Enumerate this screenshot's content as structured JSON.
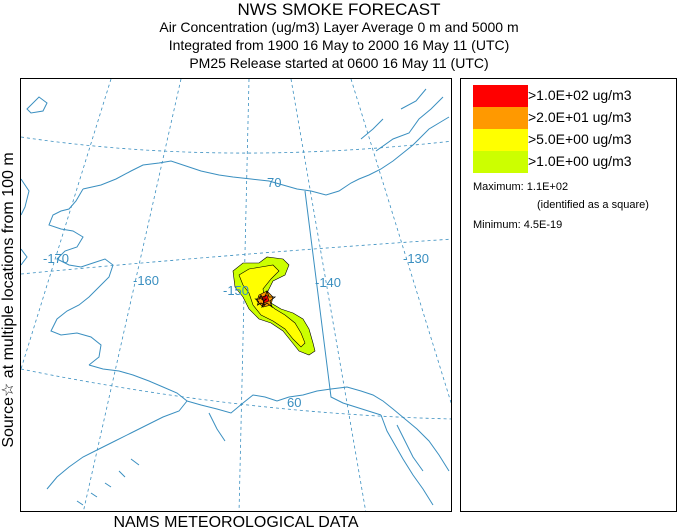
{
  "header": {
    "title": "NWS SMOKE FORECAST",
    "line2": "Air Concentration (ug/m3) Layer Average    0 m and  5000 m",
    "line3": "Integrated from 1900 16 May to 2000 16 May 11 (UTC)",
    "line4": "PM25 Release started at 0600 16 May 11 (UTC)"
  },
  "side_label": "Source☆  at multiple locations   from   100 m",
  "footer": "NAMS METEOROLOGICAL DATA",
  "map": {
    "lon_labels": [
      "-170",
      "-160",
      "-150",
      "-140",
      "-130"
    ],
    "lat_labels": [
      "70",
      "60"
    ],
    "colors": {
      "coast": "#3a8fc0",
      "grid": "#3a8fc0"
    }
  },
  "legend": {
    "items": [
      {
        "label": ">1.0E+02 ug/m3",
        "color": "#ff0000"
      },
      {
        "label": ">2.0E+01 ug/m3",
        "color": "#ff9900"
      },
      {
        "label": ">5.0E+00 ug/m3",
        "color": "#ffff00"
      },
      {
        "label": ">1.0E+00 ug/m3",
        "color": "#ccff00"
      }
    ],
    "maximum": "Maximum: 1.1E+02",
    "maximum_note": "(identified as a square)",
    "minimum": "Minimum: 4.5E-19"
  }
}
